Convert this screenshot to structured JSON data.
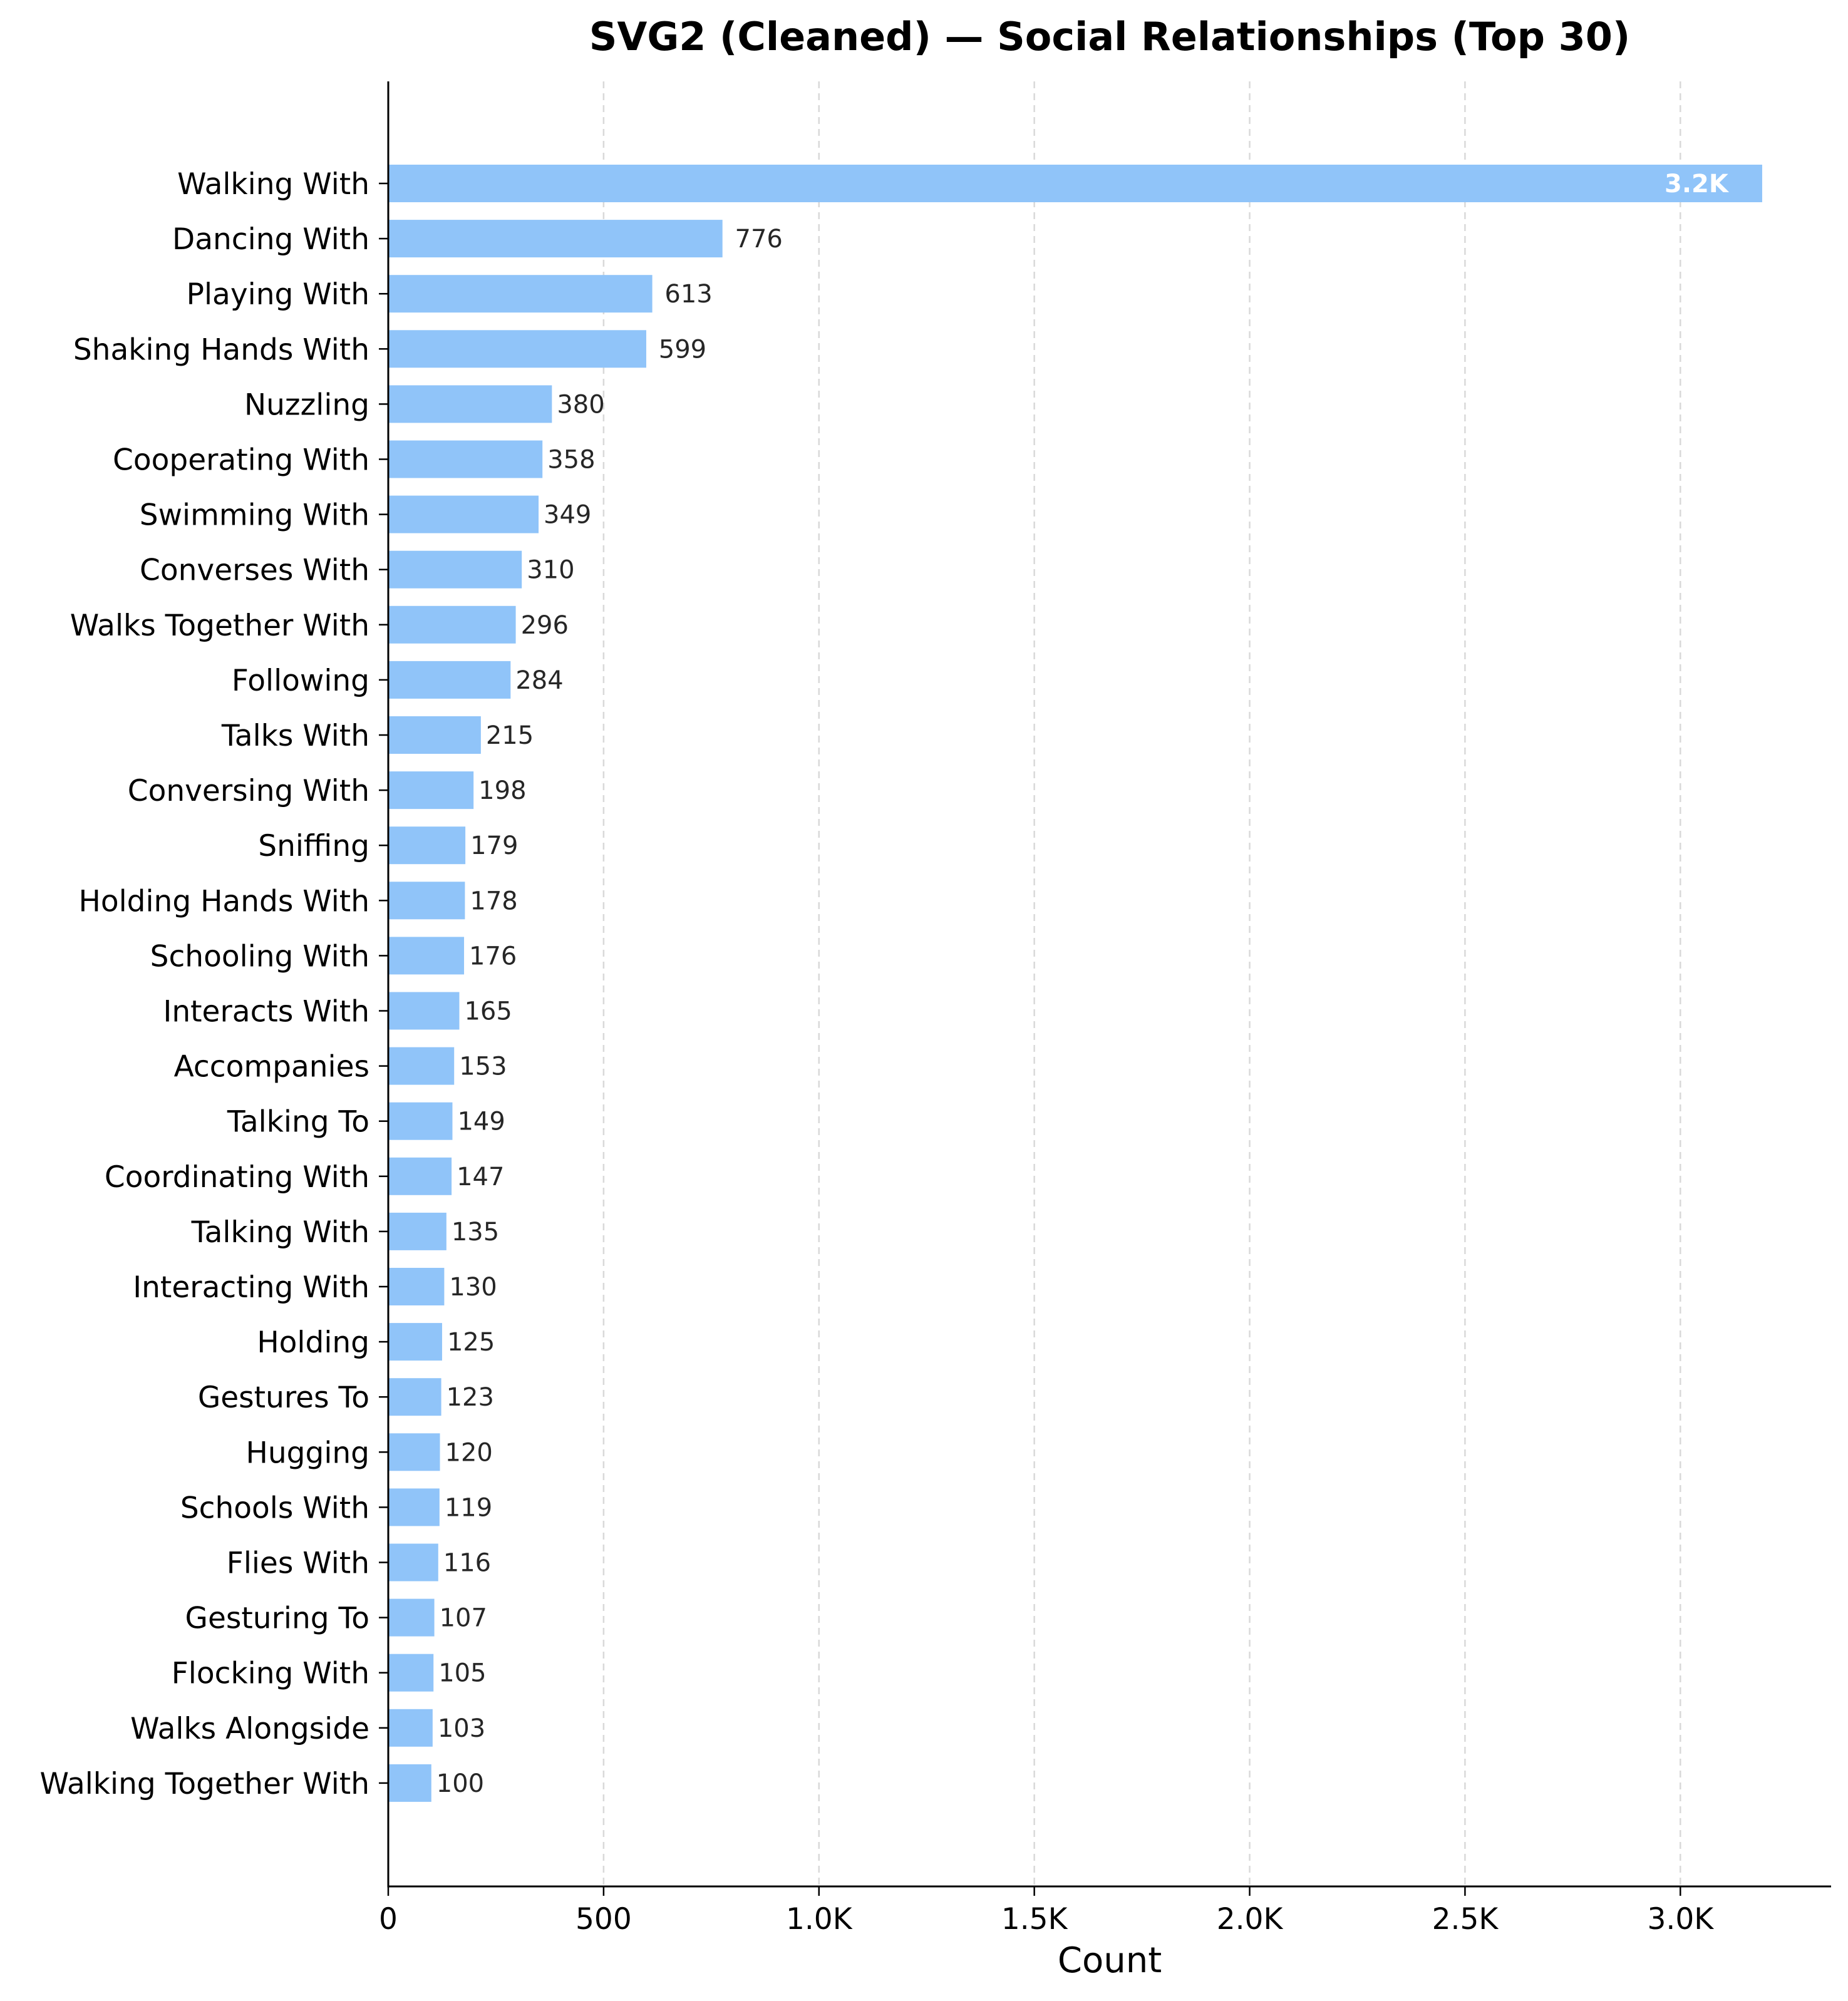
{
  "chart_data": {
    "type": "bar",
    "orientation": "horizontal",
    "title": "SVG2 (Cleaned) — Social Relationships (Top 30)",
    "xlabel": "Count",
    "ylabel": "",
    "xlim": [
      0,
      3350
    ],
    "grid": "x-dashed",
    "bar_color": "#90c4f9",
    "categories": [
      "Walking With",
      "Dancing With",
      "Playing With",
      "Shaking Hands With",
      "Nuzzling",
      "Cooperating With",
      "Swimming With",
      "Converses With",
      "Walks Together With",
      "Following",
      "Talks With",
      "Conversing With",
      "Sniffing",
      "Holding Hands With",
      "Schooling With",
      "Interacts With",
      "Accompanies",
      "Talking To",
      "Coordinating With",
      "Talking With",
      "Interacting With",
      "Holding",
      "Gestures To",
      "Hugging",
      "Schools With",
      "Flies With",
      "Gesturing To",
      "Flocking With",
      "Walks Alongside",
      "Walking Together With"
    ],
    "values": [
      3190,
      776,
      613,
      599,
      380,
      358,
      349,
      310,
      296,
      284,
      215,
      198,
      179,
      178,
      176,
      165,
      153,
      149,
      147,
      135,
      130,
      125,
      123,
      120,
      119,
      116,
      107,
      105,
      103,
      100
    ],
    "value_labels": [
      "3.2K",
      "776",
      "613",
      "599",
      "380",
      "358",
      "349",
      "310",
      "296",
      "284",
      "215",
      "198",
      "179",
      "178",
      "176",
      "165",
      "153",
      "149",
      "147",
      "135",
      "130",
      "125",
      "123",
      "120",
      "119",
      "116",
      "107",
      "105",
      "103",
      "100"
    ],
    "x_ticks": [
      0,
      500,
      1000,
      1500,
      2000,
      2500,
      3000
    ],
    "x_tick_labels": [
      "0",
      "500",
      "1.0K",
      "1.5K",
      "2.0K",
      "2.5K",
      "3.0K"
    ]
  }
}
